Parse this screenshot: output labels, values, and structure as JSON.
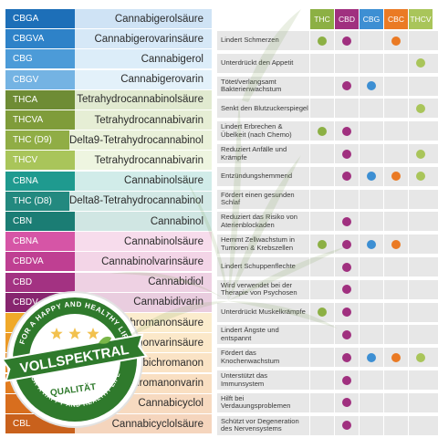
{
  "cannabinoids": [
    {
      "abbr": "CBGA",
      "name": "Cannabigerolsäure",
      "color": "#1d6fb8",
      "light": "#cfe3f5"
    },
    {
      "abbr": "CBGVA",
      "name": "Cannabigerovarinsäure",
      "color": "#2e82c8",
      "light": "#d6e8f7"
    },
    {
      "abbr": "CBG",
      "name": "Cannabigerol",
      "color": "#4c9bd8",
      "light": "#dcedf9"
    },
    {
      "abbr": "CBGV",
      "name": "Cannabigerovarin",
      "color": "#74b3e3",
      "light": "#e3f1fa"
    },
    {
      "abbr": "THCA",
      "name": "Tetrahydrocannabinolsäure",
      "color": "#6e8c35",
      "light": "#e1ead0"
    },
    {
      "abbr": "THCVA",
      "name": "Tetrahydrocannabivarin",
      "color": "#7f9c3a",
      "light": "#e6eed5"
    },
    {
      "abbr": "THC (D9)",
      "name": "Delta9-Tetrahydrocannabinol",
      "color": "#90ad45",
      "light": "#eaf1da"
    },
    {
      "abbr": "THCV",
      "name": "Tetrahydrocannabivarin",
      "color": "#a9c55a",
      "light": "#eef5e0"
    },
    {
      "abbr": "CBNA",
      "name": "Cannabinolsäure",
      "color": "#1f9a8f",
      "light": "#d1ece9"
    },
    {
      "abbr": "THC (D8)",
      "name": "Delta8-Tetrahydrocannabinol",
      "color": "#23897f",
      "light": "#d3e9e6"
    },
    {
      "abbr": "CBN",
      "name": "Cannabinol",
      "color": "#1b7d74",
      "light": "#d0e6e3"
    },
    {
      "abbr": "CBNA",
      "name": "Cannabinolsäure",
      "color": "#d655a6",
      "light": "#f7dcec"
    },
    {
      "abbr": "CBDVA",
      "name": "Cannabinolvarinsäure",
      "color": "#bf3f92",
      "light": "#f3d5e7"
    },
    {
      "abbr": "CBD",
      "name": "Cannabidiol",
      "color": "#a33282",
      "light": "#eed1e3"
    },
    {
      "abbr": "CBDV",
      "name": "Cannabidivarin",
      "color": "#87256f",
      "light": "#e9cddf"
    },
    {
      "abbr": "",
      "name": "Cannabichromanonsäure",
      "color": "#f0a92a",
      "light": "#fbeccd"
    },
    {
      "abbr": "",
      "name": "Cannabichromanonvarinsäure",
      "color": "#ec9a26",
      "light": "#fbe8c9"
    },
    {
      "abbr": "",
      "name": "Cannabichromanon",
      "color": "#e88a22",
      "light": "#fae3c5"
    },
    {
      "abbr": "",
      "name": "Cannabichromanonvarin",
      "color": "#e27c20",
      "light": "#f9dfc2"
    },
    {
      "abbr": "",
      "name": "Cannabicyclol",
      "color": "#d86e1e",
      "light": "#f7dac0"
    },
    {
      "abbr": "CBL",
      "name": "Cannabicyclolsäure",
      "color": "#c9611c",
      "light": "#f5d5bd"
    }
  ],
  "columns": [
    {
      "label": "THC",
      "color": "#8cb044"
    },
    {
      "label": "CBD",
      "color": "#a0307f"
    },
    {
      "label": "CBG",
      "color": "#3d8fd3"
    },
    {
      "label": "CBC",
      "color": "#ea7a24"
    },
    {
      "label": "THCV",
      "color": "#a9c55a"
    }
  ],
  "effects": [
    {
      "text": "Lindert Schmerzen",
      "marks": [
        1,
        1,
        0,
        1,
        0
      ]
    },
    {
      "text": "Unterdrückt den Appetit",
      "marks": [
        0,
        0,
        0,
        0,
        1
      ]
    },
    {
      "text": "Tötet/verlangsamt Bakterienwachstum",
      "marks": [
        0,
        1,
        1,
        0,
        0
      ]
    },
    {
      "text": "Senkt den Blutzuckerspiegel",
      "marks": [
        0,
        0,
        0,
        0,
        1
      ]
    },
    {
      "text": "Lindert Erbrechen & Übelkeit (nach Chemo)",
      "marks": [
        1,
        1,
        0,
        0,
        0
      ]
    },
    {
      "text": "Reduziert Anfälle und Krämpfe",
      "marks": [
        0,
        1,
        0,
        0,
        1
      ]
    },
    {
      "text": "Entzündungshemmend",
      "marks": [
        0,
        1,
        1,
        1,
        1
      ]
    },
    {
      "text": "Fördert einen gesunden Schlaf",
      "marks": [
        0,
        0,
        0,
        0,
        0
      ]
    },
    {
      "text": "Reduziert das Risiko von Aterienblockaden",
      "marks": [
        0,
        1,
        0,
        0,
        0
      ]
    },
    {
      "text": "Hemmt Zellwachstum in Tumoren & Krebszellen",
      "marks": [
        1,
        1,
        1,
        1,
        0
      ]
    },
    {
      "text": "Lindert Schuppenflechte",
      "marks": [
        0,
        1,
        0,
        0,
        0
      ]
    },
    {
      "text": "Wird verwendet bei der Therapie von Psychosen",
      "marks": [
        0,
        1,
        0,
        0,
        0
      ]
    },
    {
      "text": "Unterdrückt Muskelkrämpfe",
      "marks": [
        1,
        1,
        0,
        0,
        0
      ]
    },
    {
      "text": "Lindert Ängste und entspannt",
      "marks": [
        0,
        1,
        0,
        0,
        0
      ]
    },
    {
      "text": "Fördert das Knochenwachstum",
      "marks": [
        0,
        1,
        1,
        1,
        1
      ]
    },
    {
      "text": "Unterstützt das Immunsystem",
      "marks": [
        0,
        1,
        0,
        0,
        0
      ]
    },
    {
      "text": "Hilft bei Verdauungsproblemen",
      "marks": [
        0,
        1,
        0,
        0,
        0
      ]
    },
    {
      "text": "Schützt vor Degeneration des Nervensystems",
      "marks": [
        0,
        1,
        0,
        0,
        0
      ]
    }
  ],
  "seal": {
    "label": "VOLLSPEKTRAL",
    "sublabel": "QUALITÄT",
    "ring_text": "FOR A HAPPY AND HEALTHY LIFE",
    "ring_text_bottom": "FOR A HAPPY AND HEALTHY LIFE",
    "green": "#2f7a2c",
    "stars": 3
  }
}
